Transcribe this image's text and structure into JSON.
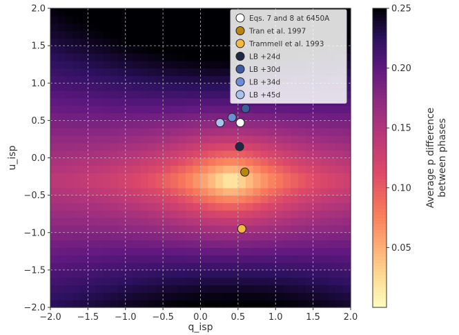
{
  "chart_data": {
    "type": "heatmap",
    "title": "",
    "xlabel": "q_isp",
    "ylabel": "u_isp",
    "xlim": [
      -2.0,
      2.0
    ],
    "ylim": [
      -2.0,
      2.0
    ],
    "x_ticks": [
      "−2.0",
      "−1.5",
      "−1.0",
      "−0.5",
      "0.0",
      "0.5",
      "1.0",
      "1.5",
      "2.0"
    ],
    "y_ticks": [
      "−2.0",
      "−1.5",
      "−1.0",
      "−0.5",
      "0.0",
      "0.5",
      "1.0",
      "1.5",
      "2.0"
    ],
    "grid": true,
    "grid_resolution": 40,
    "colormap": "magma_r",
    "colorbar": {
      "label_lines": [
        "Average p difference",
        "between phases"
      ],
      "range": [
        0.0,
        0.25
      ],
      "ticks": [
        0.05,
        0.1,
        0.15,
        0.2,
        0.25
      ],
      "tick_labels": [
        "0.05",
        "0.10",
        "0.15",
        "0.20",
        "0.25"
      ]
    },
    "legend_position": "top-right",
    "series": [
      {
        "name": "Eqs. 7 and 8 at 6450A",
        "color": "#ffffff",
        "points": [
          [
            0.53,
            0.47
          ]
        ]
      },
      {
        "name": "Tran et al. 1997",
        "color": "#b8860b",
        "points": [
          [
            0.59,
            -0.19
          ]
        ]
      },
      {
        "name": "Trammell et al. 1993",
        "color": "#f5b942",
        "points": [
          [
            0.55,
            -0.95
          ]
        ]
      },
      {
        "name": "LB +24d",
        "color": "#1e2a44",
        "points": [
          [
            0.52,
            0.15
          ]
        ]
      },
      {
        "name": "LB +30d",
        "color": "#3f5a9e",
        "points": [
          [
            0.6,
            0.66
          ]
        ]
      },
      {
        "name": "LB +34d",
        "color": "#6a8fd6",
        "points": [
          [
            0.42,
            0.54
          ]
        ]
      },
      {
        "name": "LB +45d",
        "color": "#a8c3ec",
        "points": [
          [
            0.26,
            0.47
          ]
        ]
      }
    ]
  }
}
